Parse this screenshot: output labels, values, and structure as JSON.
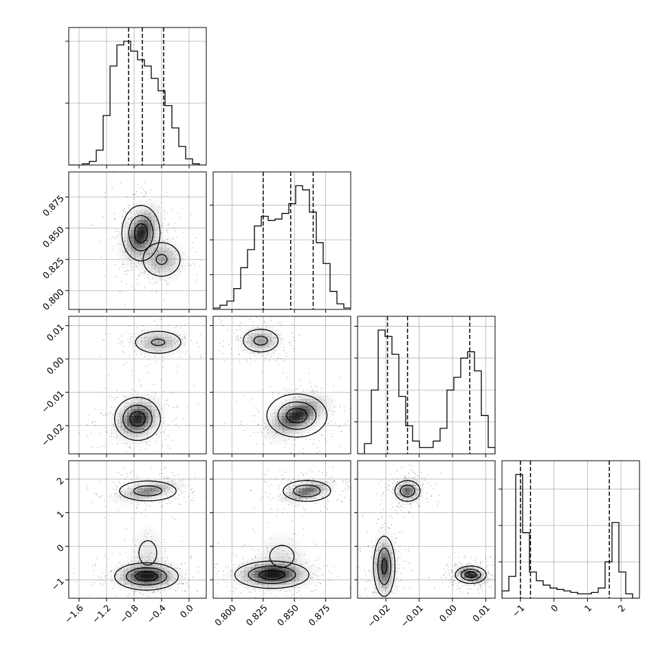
{
  "chart_data": {
    "type": "corner",
    "title": "",
    "variables": [
      {
        "xticks": [
          -1.6,
          -1.2,
          -0.8,
          -0.4,
          0.0
        ],
        "xtick_labels": [
          "−1.6",
          "−1.2",
          "−0.8",
          "−0.4",
          "0.0"
        ],
        "range": [
          -1.75,
          0.25
        ],
        "quantiles": [
          -0.88,
          -0.68,
          -0.37
        ],
        "hist": [
          0.0,
          0.0,
          0.01,
          0.03,
          0.12,
          0.4,
          0.8,
          0.97,
          1.0,
          0.92,
          0.85,
          0.8,
          0.7,
          0.6,
          0.48,
          0.3,
          0.15,
          0.05,
          0.01,
          0.0
        ]
      },
      {
        "yticks": [
          0.8,
          0.825,
          0.85,
          0.875
        ],
        "ytick_labels": [
          "0.800",
          "0.825",
          "0.850",
          "0.875"
        ],
        "xticks": [
          0.8,
          0.825,
          0.85,
          0.875
        ],
        "xtick_labels": [
          "0.800",
          "0.825",
          "0.850",
          "0.875"
        ],
        "range": [
          0.785,
          0.895
        ],
        "quantiles": [
          0.825,
          0.847,
          0.865
        ],
        "hist": [
          0.01,
          0.03,
          0.06,
          0.15,
          0.3,
          0.43,
          0.6,
          0.67,
          0.64,
          0.65,
          0.69,
          0.76,
          0.89,
          0.86,
          0.7,
          0.48,
          0.33,
          0.13,
          0.04,
          0.01
        ]
      },
      {
        "yticks": [
          -0.02,
          -0.01,
          0.0,
          0.01
        ],
        "ytick_labels": [
          "−0.02",
          "−0.01",
          "0.00",
          "0.01"
        ],
        "xticks": [
          -0.02,
          -0.01,
          0.0,
          0.01
        ],
        "xtick_labels": [
          "−0.02",
          "−0.01",
          "0.00",
          "0.01"
        ],
        "range": [
          -0.0285,
          0.0128
        ],
        "quantiles": [
          -0.0195,
          -0.0135,
          0.0052
        ],
        "hist": [
          0.0,
          0.08,
          0.5,
          0.97,
          0.92,
          0.78,
          0.45,
          0.22,
          0.1,
          0.05,
          0.05,
          0.1,
          0.2,
          0.5,
          0.6,
          0.75,
          0.8,
          0.65,
          0.3,
          0.05
        ]
      },
      {
        "yticks": [
          -1,
          0,
          1,
          2
        ],
        "ytick_labels": [
          "−1",
          "0",
          "1",
          "2"
        ],
        "xticks": [
          -1,
          0,
          1,
          2
        ],
        "xtick_labels": [
          "−1",
          "0",
          "1",
          "2"
        ],
        "range": [
          -1.55,
          2.55
        ],
        "quantiles": [
          -1.0,
          -0.7,
          1.65
        ],
        "hist": [
          0.05,
          0.15,
          0.85,
          0.45,
          0.18,
          0.12,
          0.09,
          0.07,
          0.06,
          0.05,
          0.04,
          0.03,
          0.03,
          0.04,
          0.07,
          0.25,
          0.52,
          0.18,
          0.03,
          0.0
        ]
      }
    ],
    "blobs": {
      "1_0": [
        {
          "cx": -0.7,
          "cy": 0.846,
          "sx": 0.15,
          "sy": 0.012,
          "rho": 0.4,
          "w": 1.0
        },
        {
          "cx": -0.4,
          "cy": 0.825,
          "sx": 0.18,
          "sy": 0.009,
          "rho": 0.0,
          "w": 0.55
        }
      ],
      "2_0": [
        {
          "cx": -0.75,
          "cy": -0.018,
          "sx": 0.18,
          "sy": 0.0035,
          "rho": 0.2,
          "w": 1.0
        },
        {
          "cx": -0.45,
          "cy": 0.005,
          "sx": 0.22,
          "sy": 0.0022,
          "rho": 0.0,
          "w": 0.55
        }
      ],
      "2_1": [
        {
          "cx": 0.823,
          "cy": 0.0055,
          "sx": 0.009,
          "sy": 0.0022,
          "rho": 0.0,
          "w": 0.6
        },
        {
          "cx": 0.852,
          "cy": -0.017,
          "sx": 0.013,
          "sy": 0.0035,
          "rho": 0.5,
          "w": 1.0
        }
      ],
      "3_0": [
        {
          "cx": -0.6,
          "cy": 1.65,
          "sx": 0.25,
          "sy": 0.18,
          "rho": 0.5,
          "w": 0.7
        },
        {
          "cx": -0.62,
          "cy": -0.9,
          "sx": 0.25,
          "sy": 0.22,
          "rho": 0.0,
          "w": 1.0
        },
        {
          "cx": -0.6,
          "cy": -0.2,
          "sx": 0.16,
          "sy": 0.45,
          "rho": 0.0,
          "w": 0.25
        }
      ],
      "3_1": [
        {
          "cx": 0.86,
          "cy": 1.65,
          "sx": 0.011,
          "sy": 0.18,
          "rho": 0.5,
          "w": 0.8
        },
        {
          "cx": 0.832,
          "cy": -0.85,
          "sx": 0.016,
          "sy": 0.22,
          "rho": 0.0,
          "w": 1.0
        },
        {
          "cx": 0.84,
          "cy": -0.3,
          "sx": 0.012,
          "sy": 0.4,
          "rho": 0.0,
          "w": 0.25
        }
      ],
      "3_2": [
        {
          "cx": -0.0135,
          "cy": 1.65,
          "sx": 0.0022,
          "sy": 0.18,
          "rho": 0.0,
          "w": 0.8
        },
        {
          "cx": -0.0205,
          "cy": -0.6,
          "sx": 0.0018,
          "sy": 0.5,
          "rho": 0.0,
          "w": 0.9
        },
        {
          "cx": 0.0055,
          "cy": -0.85,
          "sx": 0.0025,
          "sy": 0.14,
          "rho": -0.3,
          "w": 1.0
        }
      ]
    }
  }
}
